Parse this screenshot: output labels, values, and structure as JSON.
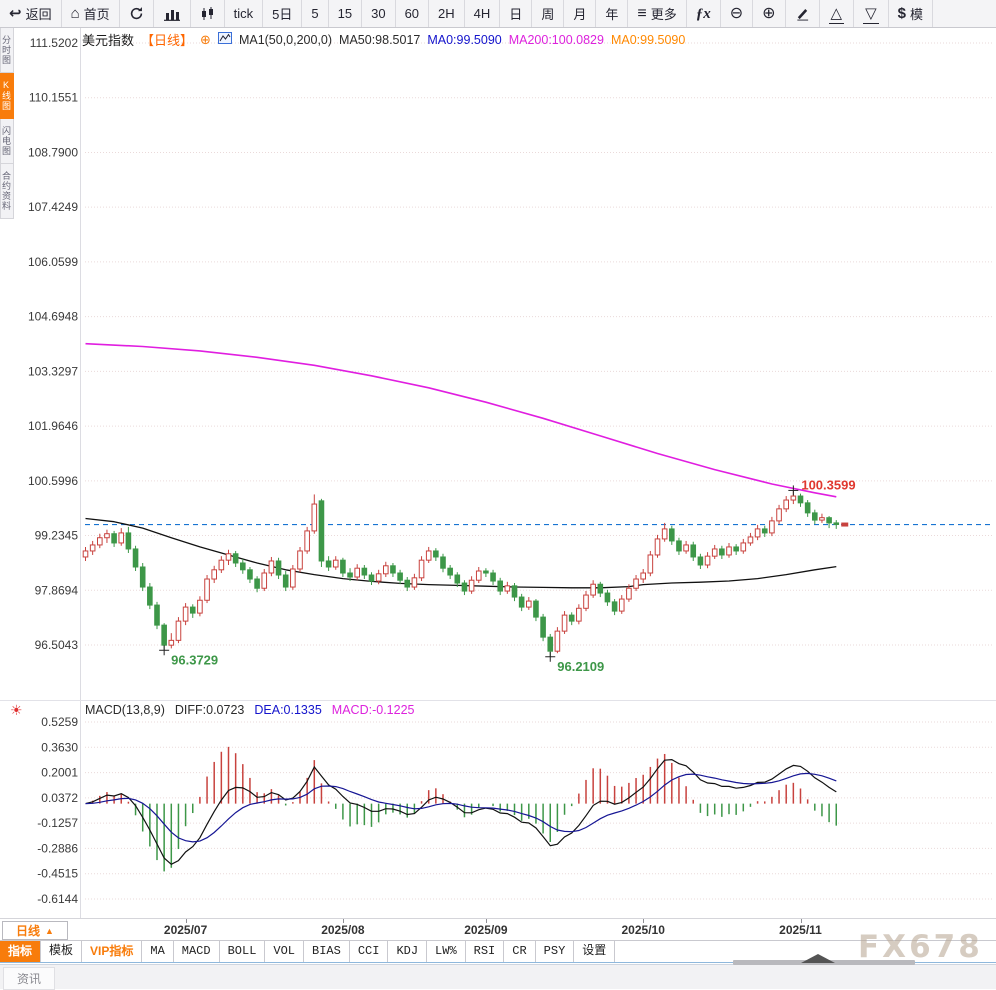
{
  "window": {
    "watermark": "FX678"
  },
  "toolbar": {
    "items": [
      {
        "name": "back",
        "icon": "back-icon",
        "label": "返回"
      },
      {
        "name": "home",
        "icon": "home-icon",
        "label": "首页"
      },
      {
        "name": "refresh",
        "icon": "refresh-icon",
        "label": ""
      },
      {
        "name": "bar-chart",
        "icon": "bar-chart-icon",
        "label": ""
      },
      {
        "name": "candles",
        "icon": "candles-icon",
        "label": ""
      },
      {
        "name": "tick",
        "label": "tick"
      },
      {
        "name": "5d",
        "label": "5日"
      },
      {
        "name": "m5",
        "label": "5"
      },
      {
        "name": "m15",
        "label": "15"
      },
      {
        "name": "m30",
        "label": "30"
      },
      {
        "name": "m60",
        "label": "60"
      },
      {
        "name": "2h",
        "label": "2H"
      },
      {
        "name": "4h",
        "label": "4H"
      },
      {
        "name": "day",
        "label": "日"
      },
      {
        "name": "week",
        "label": "周"
      },
      {
        "name": "month",
        "label": "月"
      },
      {
        "name": "year",
        "label": "年"
      },
      {
        "name": "more",
        "icon": "menu-icon",
        "label": "更多"
      },
      {
        "name": "formula",
        "icon": "fx-icon",
        "label": ""
      },
      {
        "name": "zoom-out",
        "icon": "zoom-out-icon",
        "label": ""
      },
      {
        "name": "zoom-in",
        "icon": "zoom-in-icon",
        "label": ""
      },
      {
        "name": "draw",
        "icon": "pencil-icon",
        "label": ""
      },
      {
        "name": "flag-up",
        "icon": "triangle-up-icon",
        "label": ""
      },
      {
        "name": "flag-down",
        "icon": "triangle-down-icon",
        "label": ""
      },
      {
        "name": "simulate",
        "icon": "dollar-icon",
        "label": "模"
      }
    ]
  },
  "sidebar": {
    "items": [
      {
        "label": "分时图",
        "active": false
      },
      {
        "label": "K线图",
        "active": true
      },
      {
        "label": "闪电图",
        "active": false
      },
      {
        "label": "合约资料",
        "active": false
      }
    ]
  },
  "chart_header": {
    "symbol": "美元指数",
    "period": "【日线】",
    "ma_settings": "MA1(50,0,200,0)",
    "ma50_text": "MA50:98.5017",
    "ma0_blue_text": "MA0:99.5090",
    "ma200_text": "MA200:100.0829",
    "ma0_orange_text": "MA0:99.5090"
  },
  "macd_header": {
    "title": "MACD(13,8,9)",
    "diff_text": "DIFF:0.0723",
    "dea_text": "DEA:0.1335",
    "macd_text": "MACD:-0.1225"
  },
  "bottom": {
    "period_label": "日线",
    "period_arrow": "▲",
    "tabs": [
      {
        "label": "指标",
        "style": "active"
      },
      {
        "label": "模板",
        "style": ""
      },
      {
        "label": "VIP指标",
        "style": "vip"
      },
      {
        "label": "MA",
        "style": ""
      },
      {
        "label": "MACD",
        "style": ""
      },
      {
        "label": "BOLL",
        "style": ""
      },
      {
        "label": "VOL",
        "style": ""
      },
      {
        "label": "BIAS",
        "style": ""
      },
      {
        "label": "CCI",
        "style": ""
      },
      {
        "label": "KDJ",
        "style": ""
      },
      {
        "label": "LW%",
        "style": ""
      },
      {
        "label": "RSI",
        "style": ""
      },
      {
        "label": "CR",
        "style": ""
      },
      {
        "label": "PSY",
        "style": ""
      },
      {
        "label": "设置",
        "style": ""
      }
    ],
    "news_tab": "资讯"
  },
  "colors": {
    "accent_orange": "#f87c0b",
    "up_red": "#c8423e",
    "down_green": "#3d9748",
    "ma200_magenta": "#e01ee0",
    "ma50_black": "#111111",
    "price_line_blue": "#1874d2",
    "grid": "#eadada",
    "axis_text": "#3a3a3a",
    "dea_blue": "#161694",
    "marker_red": "#e0382f",
    "marker_green": "#3d9748"
  },
  "chart_data": {
    "type": "candlestick+macd",
    "title": "美元指数 日线 (US Dollar Index, daily)",
    "y_axis_labels": [
      "111.5202",
      "110.1551",
      "108.7900",
      "107.4249",
      "106.0599",
      "104.6948",
      "103.3297",
      "101.9646",
      "100.5996",
      "99.2345",
      "97.8694",
      "96.5043"
    ],
    "macd_axis_labels": [
      "0.5259",
      "0.3630",
      "0.2001",
      "0.0372",
      "-0.1257",
      "-0.2886",
      "-0.4515",
      "-0.6144"
    ],
    "x_axis_labels": [
      "2025/07",
      "2025/08",
      "2025/09",
      "2025/10",
      "2025/11"
    ],
    "month_tick_indices": [
      14,
      36,
      56,
      78,
      100
    ],
    "current_price": 99.509,
    "high_marker": {
      "value": "100.3599",
      "index": 99,
      "price": 100.36
    },
    "low_markers": [
      {
        "value": "96.3729",
        "index": 11,
        "price": 96.373
      },
      {
        "value": "96.2109",
        "index": 65,
        "price": 96.211
      }
    ],
    "macd_params": {
      "fast": 8,
      "slow": 13,
      "signal": 9
    },
    "ma200_points": [
      [
        0,
        104.02
      ],
      [
        8,
        103.95
      ],
      [
        16,
        103.84
      ],
      [
        24,
        103.68
      ],
      [
        32,
        103.48
      ],
      [
        40,
        103.22
      ],
      [
        48,
        102.92
      ],
      [
        56,
        102.56
      ],
      [
        64,
        102.16
      ],
      [
        72,
        101.72
      ],
      [
        80,
        101.28
      ],
      [
        88,
        100.88
      ],
      [
        96,
        100.52
      ],
      [
        102,
        100.3
      ],
      [
        105,
        100.2
      ]
    ],
    "ma50_points": [
      [
        0,
        99.66
      ],
      [
        4,
        99.58
      ],
      [
        8,
        99.42
      ],
      [
        12,
        99.18
      ],
      [
        16,
        98.95
      ],
      [
        20,
        98.75
      ],
      [
        24,
        98.55
      ],
      [
        28,
        98.38
      ],
      [
        32,
        98.26
      ],
      [
        36,
        98.16
      ],
      [
        40,
        98.09
      ],
      [
        44,
        98.04
      ],
      [
        48,
        98.01
      ],
      [
        52,
        97.99
      ],
      [
        56,
        97.97
      ],
      [
        60,
        97.95
      ],
      [
        64,
        97.94
      ],
      [
        68,
        97.93
      ],
      [
        72,
        97.93
      ],
      [
        76,
        97.96
      ],
      [
        78,
        98.01
      ],
      [
        82,
        98.05
      ],
      [
        86,
        98.07
      ],
      [
        90,
        98.1
      ],
      [
        94,
        98.16
      ],
      [
        98,
        98.26
      ],
      [
        102,
        98.38
      ],
      [
        105,
        98.46
      ]
    ],
    "candles": [
      [
        98.7,
        98.95,
        98.6,
        98.85
      ],
      [
        98.85,
        99.1,
        98.75,
        99.0
      ],
      [
        99.0,
        99.28,
        98.92,
        99.18
      ],
      [
        99.18,
        99.38,
        99.05,
        99.28
      ],
      [
        99.28,
        99.35,
        98.95,
        99.05
      ],
      [
        99.05,
        99.42,
        98.98,
        99.3
      ],
      [
        99.3,
        99.45,
        98.8,
        98.9
      ],
      [
        98.9,
        98.98,
        98.35,
        98.45
      ],
      [
        98.45,
        98.55,
        97.85,
        97.95
      ],
      [
        97.95,
        98.05,
        97.4,
        97.5
      ],
      [
        97.5,
        97.58,
        96.9,
        97.0
      ],
      [
        97.0,
        97.05,
        96.373,
        96.5
      ],
      [
        96.5,
        96.8,
        96.42,
        96.62
      ],
      [
        96.62,
        97.2,
        96.55,
        97.1
      ],
      [
        97.1,
        97.55,
        97.0,
        97.45
      ],
      [
        97.45,
        97.52,
        97.18,
        97.3
      ],
      [
        97.3,
        97.72,
        97.22,
        97.62
      ],
      [
        97.62,
        98.25,
        97.55,
        98.15
      ],
      [
        98.15,
        98.48,
        98.05,
        98.38
      ],
      [
        98.38,
        98.72,
        98.3,
        98.62
      ],
      [
        98.62,
        98.88,
        98.5,
        98.78
      ],
      [
        98.78,
        98.85,
        98.45,
        98.55
      ],
      [
        98.55,
        98.65,
        98.28,
        98.38
      ],
      [
        98.38,
        98.45,
        98.05,
        98.15
      ],
      [
        98.15,
        98.22,
        97.82,
        97.92
      ],
      [
        97.92,
        98.4,
        97.85,
        98.3
      ],
      [
        98.3,
        98.7,
        98.22,
        98.6
      ],
      [
        98.6,
        98.68,
        98.15,
        98.25
      ],
      [
        98.25,
        98.35,
        97.85,
        97.95
      ],
      [
        97.95,
        98.5,
        97.88,
        98.4
      ],
      [
        98.4,
        98.95,
        98.32,
        98.85
      ],
      [
        98.85,
        99.45,
        98.78,
        99.35
      ],
      [
        99.35,
        100.26,
        99.28,
        100.02
      ],
      [
        100.1,
        100.15,
        98.45,
        98.6
      ],
      [
        98.6,
        98.72,
        98.35,
        98.45
      ],
      [
        98.45,
        98.72,
        98.38,
        98.62
      ],
      [
        98.62,
        98.68,
        98.2,
        98.3
      ],
      [
        98.3,
        98.42,
        98.1,
        98.2
      ],
      [
        98.2,
        98.52,
        98.12,
        98.42
      ],
      [
        98.42,
        98.5,
        98.15,
        98.25
      ],
      [
        98.25,
        98.32,
        98.0,
        98.1
      ],
      [
        98.1,
        98.38,
        98.02,
        98.28
      ],
      [
        98.28,
        98.58,
        98.2,
        98.48
      ],
      [
        98.48,
        98.55,
        98.2,
        98.3
      ],
      [
        98.3,
        98.38,
        98.02,
        98.12
      ],
      [
        98.12,
        98.2,
        97.85,
        97.95
      ],
      [
        97.95,
        98.28,
        97.88,
        98.18
      ],
      [
        98.18,
        98.72,
        98.1,
        98.62
      ],
      [
        98.62,
        98.95,
        98.55,
        98.85
      ],
      [
        98.85,
        98.92,
        98.6,
        98.7
      ],
      [
        98.7,
        98.78,
        98.32,
        98.42
      ],
      [
        98.42,
        98.5,
        98.15,
        98.25
      ],
      [
        98.25,
        98.32,
        97.95,
        98.05
      ],
      [
        98.05,
        98.12,
        97.75,
        97.85
      ],
      [
        97.85,
        98.22,
        97.78,
        98.12
      ],
      [
        98.12,
        98.45,
        98.05,
        98.35
      ],
      [
        98.35,
        98.42,
        98.2,
        98.3
      ],
      [
        98.3,
        98.38,
        98.0,
        98.1
      ],
      [
        98.1,
        98.18,
        97.75,
        97.85
      ],
      [
        97.85,
        98.08,
        97.78,
        97.98
      ],
      [
        97.98,
        98.05,
        97.6,
        97.7
      ],
      [
        97.7,
        97.78,
        97.35,
        97.45
      ],
      [
        97.45,
        97.7,
        97.38,
        97.6
      ],
      [
        97.6,
        97.65,
        97.1,
        97.2
      ],
      [
        97.2,
        97.28,
        96.6,
        96.7
      ],
      [
        96.7,
        96.78,
        96.211,
        96.35
      ],
      [
        96.35,
        96.95,
        96.3,
        96.85
      ],
      [
        96.85,
        97.35,
        96.78,
        97.25
      ],
      [
        97.25,
        97.32,
        97.0,
        97.1
      ],
      [
        97.1,
        97.52,
        97.02,
        97.42
      ],
      [
        97.42,
        97.85,
        97.35,
        97.75
      ],
      [
        97.75,
        98.12,
        97.68,
        98.02
      ],
      [
        98.02,
        98.08,
        97.7,
        97.8
      ],
      [
        97.8,
        97.88,
        97.48,
        97.58
      ],
      [
        97.58,
        97.65,
        97.25,
        97.35
      ],
      [
        97.35,
        97.75,
        97.28,
        97.65
      ],
      [
        97.65,
        98.02,
        97.58,
        97.92
      ],
      [
        97.92,
        98.25,
        97.85,
        98.15
      ],
      [
        98.15,
        98.4,
        98.05,
        98.3
      ],
      [
        98.3,
        98.85,
        98.22,
        98.75
      ],
      [
        98.75,
        99.25,
        98.68,
        99.15
      ],
      [
        99.15,
        99.55,
        99.08,
        99.4
      ],
      [
        99.4,
        99.48,
        99.0,
        99.1
      ],
      [
        99.1,
        99.18,
        98.75,
        98.85
      ],
      [
        98.85,
        99.1,
        98.78,
        99.0
      ],
      [
        99.0,
        99.08,
        98.6,
        98.7
      ],
      [
        98.7,
        98.78,
        98.4,
        98.5
      ],
      [
        98.5,
        98.82,
        98.42,
        98.72
      ],
      [
        98.72,
        99.0,
        98.65,
        98.9
      ],
      [
        98.9,
        98.98,
        98.65,
        98.75
      ],
      [
        98.75,
        99.05,
        98.68,
        98.95
      ],
      [
        98.95,
        99.02,
        98.75,
        98.85
      ],
      [
        98.85,
        99.15,
        98.78,
        99.05
      ],
      [
        99.05,
        99.3,
        98.98,
        99.2
      ],
      [
        99.2,
        99.5,
        99.12,
        99.4
      ],
      [
        99.4,
        99.48,
        99.2,
        99.3
      ],
      [
        99.3,
        99.7,
        99.22,
        99.6
      ],
      [
        99.6,
        100.0,
        99.52,
        99.9
      ],
      [
        99.9,
        100.22,
        99.82,
        100.12
      ],
      [
        100.12,
        100.36,
        100.02,
        100.22
      ],
      [
        100.22,
        100.28,
        99.95,
        100.05
      ],
      [
        100.05,
        100.12,
        99.7,
        99.8
      ],
      [
        99.8,
        99.88,
        99.52,
        99.62
      ],
      [
        99.62,
        99.78,
        99.55,
        99.68
      ],
      [
        99.68,
        99.72,
        99.42,
        99.55
      ],
      [
        99.55,
        99.62,
        99.4,
        99.51
      ]
    ]
  }
}
